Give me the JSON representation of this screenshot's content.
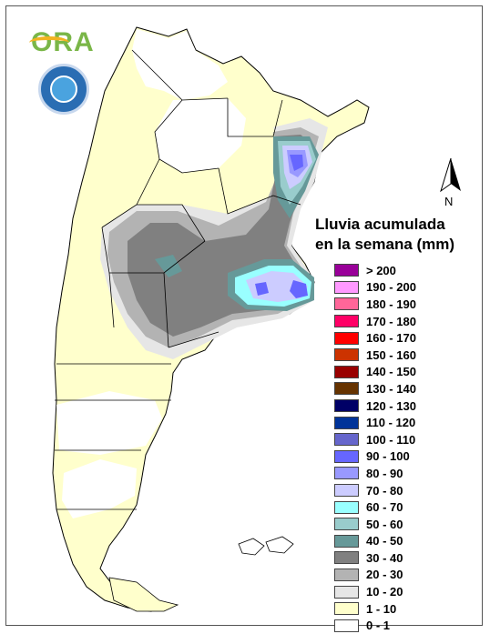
{
  "logo": {
    "text": "ORA"
  },
  "compass": {
    "label": "N"
  },
  "legend": {
    "title_line1": "Lluvia acumulada",
    "title_line2": "en la semana (mm)",
    "items": [
      {
        "label": "> 200",
        "color": "#990099"
      },
      {
        "label": "190 - 200",
        "color": "#ff99ff"
      },
      {
        "label": "180 - 190",
        "color": "#ff6699"
      },
      {
        "label": "170 - 180",
        "color": "#ff0066"
      },
      {
        "label": "160 - 170",
        "color": "#ff0000"
      },
      {
        "label": "150 - 160",
        "color": "#cc3300"
      },
      {
        "label": "140 - 150",
        "color": "#990000"
      },
      {
        "label": "130 - 140",
        "color": "#663300"
      },
      {
        "label": "120 - 130",
        "color": "#000066"
      },
      {
        "label": "110 - 120",
        "color": "#003399"
      },
      {
        "label": "100 - 110",
        "color": "#6666cc"
      },
      {
        "label": "90 - 100",
        "color": "#6666ff"
      },
      {
        "label": "80 - 90",
        "color": "#9999ff"
      },
      {
        "label": "70 - 80",
        "color": "#ccccff"
      },
      {
        "label": "60 - 70",
        "color": "#99ffff"
      },
      {
        "label": "50 - 60",
        "color": "#99cccc"
      },
      {
        "label": "40 - 50",
        "color": "#669999"
      },
      {
        "label": "30 - 40",
        "color": "#808080"
      },
      {
        "label": "20 - 30",
        "color": "#b3b3b3"
      },
      {
        "label": "10 - 20",
        "color": "#e6e6e6"
      },
      {
        "label": "1 - 10",
        "color": "#ffffcc"
      },
      {
        "label": "0 - 1",
        "color": "#ffffff"
      }
    ]
  }
}
